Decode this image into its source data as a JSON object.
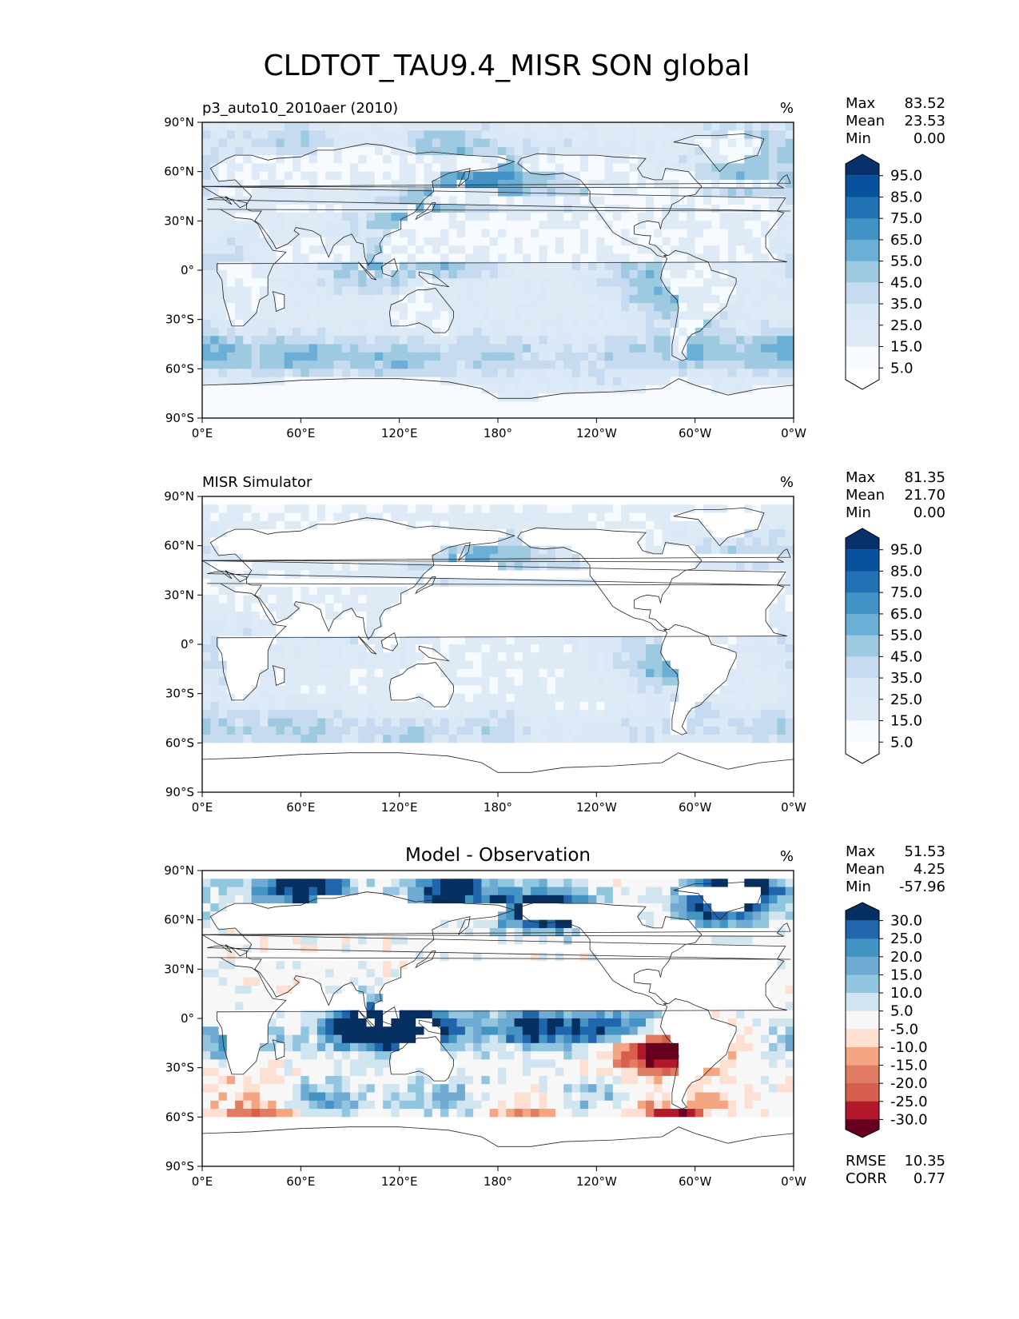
{
  "figure": {
    "title": "CLDTOT_TAU9.4_MISR SON global"
  },
  "chart_data": [
    {
      "type": "heatmap",
      "title": "p3_auto10_2010aer (2010)",
      "units": "%",
      "stats": [
        {
          "label": "Max",
          "value": "83.52"
        },
        {
          "label": "Mean",
          "value": "23.53"
        },
        {
          "label": "Min",
          "value": "0.00"
        }
      ],
      "colorbar": {
        "levels": [
          "95.0",
          "85.0",
          "75.0",
          "65.0",
          "55.0",
          "45.0",
          "35.0",
          "25.0",
          "15.0",
          "5.0"
        ],
        "palette": [
          "#08306b",
          "#08519c",
          "#2171b5",
          "#4292c6",
          "#6baed6",
          "#9ecae1",
          "#c6dbef",
          "#dbe9f6",
          "#deebf7",
          "#f7fbff",
          "#ffffff"
        ]
      },
      "x_ticks": [
        "0°E",
        "60°E",
        "120°E",
        "180°",
        "120°W",
        "60°W",
        "0°W"
      ],
      "y_ticks": [
        "90°N",
        "60°N",
        "30°N",
        "0°",
        "30°S",
        "60°S",
        "90°S"
      ],
      "xlim": [
        0,
        360
      ],
      "ylim": [
        -90,
        90
      ],
      "field": "model"
    },
    {
      "type": "heatmap",
      "title": "MISR Simulator",
      "units": "%",
      "stats": [
        {
          "label": "Max",
          "value": "81.35"
        },
        {
          "label": "Mean",
          "value": "21.70"
        },
        {
          "label": "Min",
          "value": "0.00"
        }
      ],
      "colorbar": {
        "levels": [
          "95.0",
          "85.0",
          "75.0",
          "65.0",
          "55.0",
          "45.0",
          "35.0",
          "25.0",
          "15.0",
          "5.0"
        ],
        "palette": [
          "#08306b",
          "#08519c",
          "#2171b5",
          "#4292c6",
          "#6baed6",
          "#9ecae1",
          "#c6dbef",
          "#dbe9f6",
          "#deebf7",
          "#f7fbff",
          "#ffffff"
        ]
      },
      "x_ticks": [
        "0°E",
        "60°E",
        "120°E",
        "180°",
        "120°W",
        "60°W",
        "0°W"
      ],
      "y_ticks": [
        "90°N",
        "60°N",
        "30°N",
        "0°",
        "30°S",
        "60°S",
        "90°S"
      ],
      "xlim": [
        0,
        360
      ],
      "ylim": [
        -90,
        90
      ],
      "field": "obs"
    },
    {
      "type": "heatmap",
      "title": "Model - Observation",
      "units": "%",
      "stats": [
        {
          "label": "Max",
          "value": "51.53"
        },
        {
          "label": "Mean",
          "value": "4.25"
        },
        {
          "label": "Min",
          "value": "-57.96"
        }
      ],
      "colorbar": {
        "levels": [
          "30.0",
          "25.0",
          "20.0",
          "15.0",
          "10.0",
          "5.0",
          "-5.0",
          "-10.0",
          "-15.0",
          "-20.0",
          "-25.0",
          "-30.0"
        ],
        "palette": [
          "#053061",
          "#2166ac",
          "#4393c3",
          "#6eaad2",
          "#92c5de",
          "#d1e5f0",
          "#f7f7f7",
          "#fde0d1",
          "#f4a582",
          "#e07b64",
          "#d6604d",
          "#b2182b",
          "#67001f"
        ]
      },
      "x_ticks": [
        "0°E",
        "60°E",
        "120°E",
        "180°",
        "120°W",
        "60°W",
        "0°W"
      ],
      "y_ticks": [
        "90°N",
        "60°N",
        "30°N",
        "0°",
        "30°S",
        "60°S",
        "90°S"
      ],
      "xlim": [
        0,
        360
      ],
      "ylim": [
        -90,
        90
      ],
      "field": "diff",
      "metrics": [
        {
          "label": "RMSE",
          "value": "10.35"
        },
        {
          "label": "CORR",
          "value": "0.77"
        }
      ]
    }
  ]
}
